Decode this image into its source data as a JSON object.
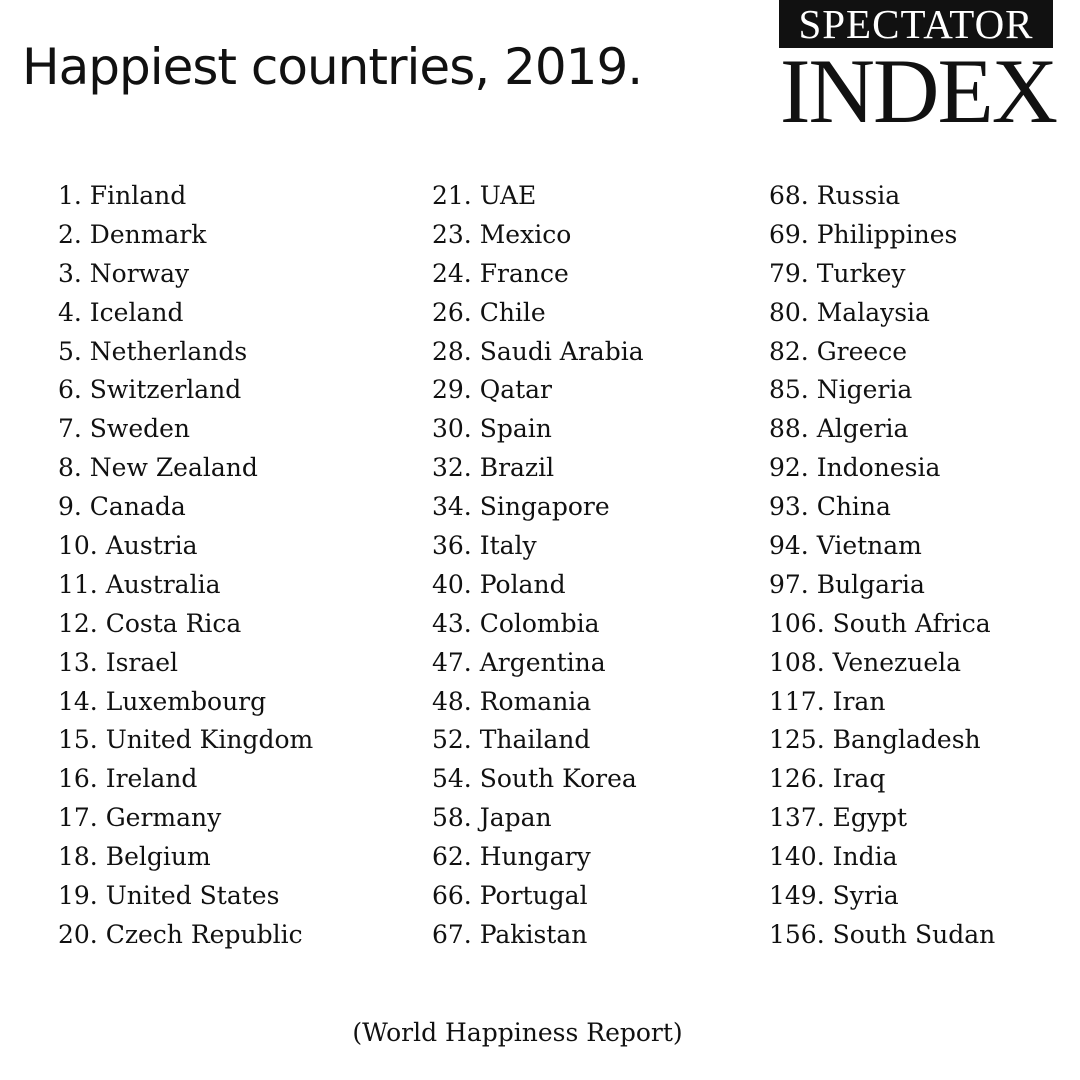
{
  "header": {
    "title": "Happiest countries, 2019."
  },
  "logo": {
    "top": "SPECTATOR",
    "bottom": "INDEX"
  },
  "columns": [
    [
      "1. Finland",
      "2. Denmark",
      "3. Norway",
      "4. Iceland",
      "5. Netherlands",
      "6. Switzerland",
      "7. Sweden",
      "8. New Zealand",
      "9. Canada",
      "10. Austria",
      "11. Australia",
      "12. Costa Rica",
      "13. Israel",
      "14. Luxembourg",
      "15. United Kingdom",
      "16. Ireland",
      "17. Germany",
      "18. Belgium",
      "19. United States",
      "20. Czech Republic"
    ],
    [
      "21. UAE",
      "23. Mexico",
      "24. France",
      "26. Chile",
      "28. Saudi Arabia",
      "29. Qatar",
      "30. Spain",
      "32. Brazil",
      "34. Singapore",
      "36. Italy",
      "40. Poland",
      "43. Colombia",
      "47. Argentina",
      "48. Romania",
      "52. Thailand",
      "54. South Korea",
      "58. Japan",
      "62. Hungary",
      "66. Portugal",
      "67. Pakistan"
    ],
    [
      "68. Russia",
      "69. Philippines",
      "79. Turkey",
      "80. Malaysia",
      "82. Greece",
      "85. Nigeria",
      "88. Algeria",
      "92. Indonesia",
      "93. China",
      "94. Vietnam",
      "97. Bulgaria",
      "106. South Africa",
      "108. Venezuela",
      "117. Iran",
      "125. Bangladesh",
      "126. Iraq",
      "137. Egypt",
      "140. India",
      "149. Syria",
      "156. South Sudan"
    ]
  ],
  "footer": {
    "source": "(World Happiness Report)"
  }
}
